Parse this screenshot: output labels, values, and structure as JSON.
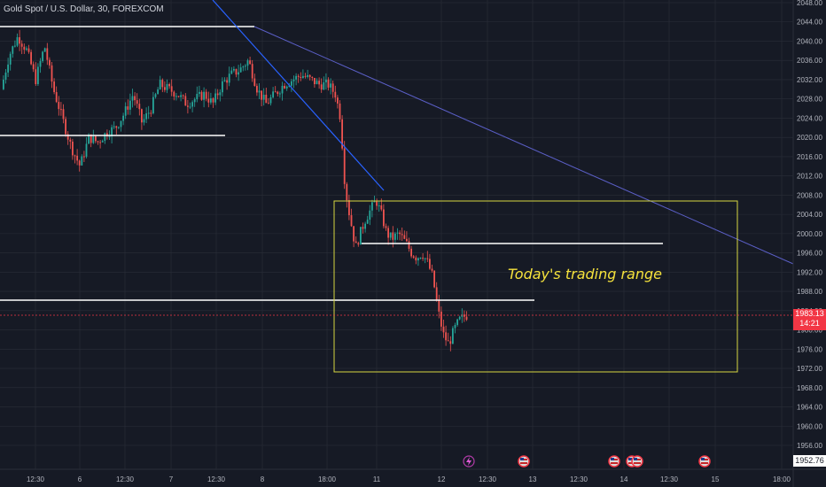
{
  "header": {
    "title": "Gold Spot / U.S. Dollar, 30, FOREXCOM"
  },
  "chart_data": {
    "type": "candlestick",
    "title": "Gold Spot / U.S. Dollar, 30, FOREXCOM",
    "y_axis": {
      "ticks": [
        "2048.00",
        "2044.00",
        "2040.00",
        "2036.00",
        "2032.00",
        "2028.00",
        "2024.00",
        "2020.00",
        "2016.00",
        "2012.00",
        "2008.00",
        "2004.00",
        "2000.00",
        "1996.00",
        "1992.00",
        "1988.00",
        "1984.00",
        "1980.00",
        "1976.00",
        "1972.00",
        "1968.00",
        "1964.00",
        "1960.00",
        "1956.00"
      ],
      "ylim": [
        1952.5,
        2050
      ]
    },
    "x_axis": {
      "ticks": [
        "12:30",
        "6",
        "12:30",
        "7",
        "12:30",
        "8",
        "18:00",
        "11",
        "12",
        "12:30",
        "13",
        "12:30",
        "14",
        "12:30",
        "15",
        "18:00"
      ]
    },
    "current_price": {
      "price": "1983.13",
      "countdown": "14:21"
    },
    "axis_low_label": "1952.76",
    "annotation": {
      "text": "Today's trading range"
    },
    "colors": {
      "up": "#26a69a",
      "down": "#ef5350",
      "background": "#161a25",
      "grid": "#2a2e39",
      "axis_text": "#b2b5be",
      "range_box": "#d7d741",
      "trendline_steep": "#2962ff",
      "trendline_long": "#5b5fc7",
      "level_lines": "#ffffff",
      "price_line": "#f23645"
    },
    "event_icons": [
      "lightning-icon",
      "us-flag-icon",
      "us-flag-icon",
      "us-flag-icon",
      "us-flag-icon"
    ]
  }
}
